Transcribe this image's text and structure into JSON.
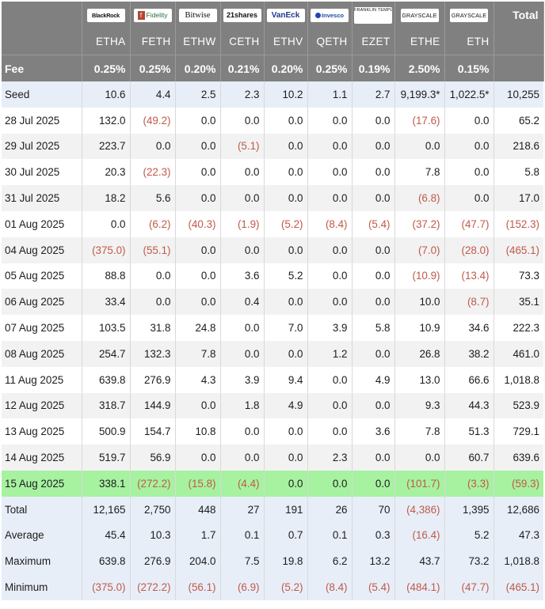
{
  "issuers": [
    {
      "logo": "BlackRock",
      "ticker": "ETHA",
      "fee": "0.25%"
    },
    {
      "logo": "Fidelity",
      "ticker": "FETH",
      "fee": "0.25%"
    },
    {
      "logo": "Bitwise",
      "ticker": "ETHW",
      "fee": "0.20%"
    },
    {
      "logo": "21shares",
      "ticker": "CETH",
      "fee": "0.21%"
    },
    {
      "logo": "VanEck",
      "ticker": "ETHV",
      "fee": "0.20%"
    },
    {
      "logo": "Invesco",
      "ticker": "QETH",
      "fee": "0.25%"
    },
    {
      "logo": "FRANKLIN TEMPLETON",
      "ticker": "EZET",
      "fee": "0.19%"
    },
    {
      "logo": "GRAYSCALE",
      "ticker": "ETHE",
      "fee": "2.50%"
    },
    {
      "logo": "GRAYSCALE",
      "ticker": "ETH",
      "fee": "0.15%"
    }
  ],
  "header": {
    "total_label": "Total",
    "fee_label": "Fee"
  },
  "rows": [
    {
      "label": "Seed",
      "style": "blue",
      "values": [
        "10.6",
        "4.4",
        "2.5",
        "2.3",
        "10.2",
        "1.1",
        "2.7",
        "9,199.3*",
        "1,022.5*",
        "10,255"
      ]
    },
    {
      "label": "28 Jul 2025",
      "style": "white",
      "values": [
        "132.0",
        "(49.2)",
        "0.0",
        "0.0",
        "0.0",
        "0.0",
        "0.0",
        "(17.6)",
        "0.0",
        "65.2"
      ]
    },
    {
      "label": "29 Jul 2025",
      "style": "gray",
      "values": [
        "223.7",
        "0.0",
        "0.0",
        "(5.1)",
        "0.0",
        "0.0",
        "0.0",
        "0.0",
        "0.0",
        "218.6"
      ]
    },
    {
      "label": "30 Jul 2025",
      "style": "white",
      "values": [
        "20.3",
        "(22.3)",
        "0.0",
        "0.0",
        "0.0",
        "0.0",
        "0.0",
        "7.8",
        "0.0",
        "5.8"
      ]
    },
    {
      "label": "31 Jul 2025",
      "style": "gray",
      "values": [
        "18.2",
        "5.6",
        "0.0",
        "0.0",
        "0.0",
        "0.0",
        "0.0",
        "(6.8)",
        "0.0",
        "17.0"
      ]
    },
    {
      "label": "01 Aug 2025",
      "style": "white",
      "values": [
        "0.0",
        "(6.2)",
        "(40.3)",
        "(1.9)",
        "(5.2)",
        "(8.4)",
        "(5.4)",
        "(37.2)",
        "(47.7)",
        "(152.3)"
      ]
    },
    {
      "label": "04 Aug 2025",
      "style": "gray",
      "values": [
        "(375.0)",
        "(55.1)",
        "0.0",
        "0.0",
        "0.0",
        "0.0",
        "0.0",
        "(7.0)",
        "(28.0)",
        "(465.1)"
      ]
    },
    {
      "label": "05 Aug 2025",
      "style": "white",
      "values": [
        "88.8",
        "0.0",
        "0.0",
        "3.6",
        "5.2",
        "0.0",
        "0.0",
        "(10.9)",
        "(13.4)",
        "73.3"
      ]
    },
    {
      "label": "06 Aug 2025",
      "style": "gray",
      "values": [
        "33.4",
        "0.0",
        "0.0",
        "0.4",
        "0.0",
        "0.0",
        "0.0",
        "10.0",
        "(8.7)",
        "35.1"
      ]
    },
    {
      "label": "07 Aug 2025",
      "style": "white",
      "values": [
        "103.5",
        "31.8",
        "24.8",
        "0.0",
        "7.0",
        "3.9",
        "5.8",
        "10.9",
        "34.6",
        "222.3"
      ]
    },
    {
      "label": "08 Aug 2025",
      "style": "gray",
      "values": [
        "254.7",
        "132.3",
        "7.8",
        "0.0",
        "0.0",
        "1.2",
        "0.0",
        "26.8",
        "38.2",
        "461.0"
      ]
    },
    {
      "label": "11 Aug 2025",
      "style": "white",
      "values": [
        "639.8",
        "276.9",
        "4.3",
        "3.9",
        "9.4",
        "0.0",
        "4.9",
        "13.0",
        "66.6",
        "1,018.8"
      ]
    },
    {
      "label": "12 Aug 2025",
      "style": "gray",
      "values": [
        "318.7",
        "144.9",
        "0.0",
        "1.8",
        "4.9",
        "0.0",
        "0.0",
        "9.3",
        "44.3",
        "523.9"
      ]
    },
    {
      "label": "13 Aug 2025",
      "style": "white",
      "values": [
        "500.9",
        "154.7",
        "10.8",
        "0.0",
        "0.0",
        "0.0",
        "3.6",
        "7.8",
        "51.3",
        "729.1"
      ]
    },
    {
      "label": "14 Aug 2025",
      "style": "gray",
      "values": [
        "519.7",
        "56.9",
        "0.0",
        "0.0",
        "0.0",
        "2.3",
        "0.0",
        "0.0",
        "60.7",
        "639.6"
      ]
    },
    {
      "label": "15 Aug 2025",
      "style": "green",
      "values": [
        "338.1",
        "(272.2)",
        "(15.8)",
        "(4.4)",
        "0.0",
        "0.0",
        "0.0",
        "(101.7)",
        "(3.3)",
        "(59.3)"
      ]
    },
    {
      "label": "Total",
      "style": "blue",
      "values": [
        "12,165",
        "2,750",
        "448",
        "27",
        "191",
        "26",
        "70",
        "(4,386)",
        "1,395",
        "12,686"
      ]
    },
    {
      "label": "Average",
      "style": "blue",
      "values": [
        "45.4",
        "10.3",
        "1.7",
        "0.1",
        "0.7",
        "0.1",
        "0.3",
        "(16.4)",
        "5.2",
        "47.3"
      ]
    },
    {
      "label": "Maximum",
      "style": "blue",
      "values": [
        "639.8",
        "276.9",
        "204.0",
        "7.5",
        "19.8",
        "6.2",
        "13.2",
        "43.7",
        "73.2",
        "1,018.8"
      ]
    },
    {
      "label": "Minimum",
      "style": "blue",
      "values": [
        "(375.0)",
        "(272.2)",
        "(56.1)",
        "(6.9)",
        "(5.2)",
        "(8.4)",
        "(5.4)",
        "(484.1)",
        "(47.7)",
        "(465.1)"
      ]
    }
  ],
  "colors": {
    "header_bg": "#808080",
    "negative": "#c05a4a",
    "highlight_row": "#a6f2a0",
    "summary_row": "#e8eef8",
    "stripe": "#f2f2f2"
  }
}
